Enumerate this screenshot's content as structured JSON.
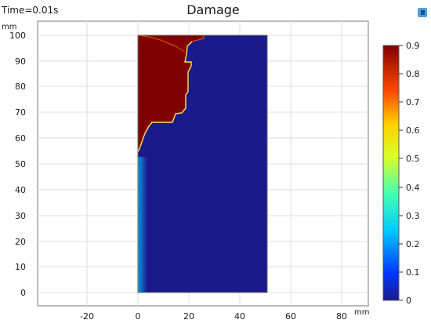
{
  "header": {
    "time_label": "Time=0.01s",
    "title": "Damage"
  },
  "axes": {
    "x_unit": "mm",
    "y_unit": "mm",
    "x_ticks": [
      "-20",
      "0",
      "20",
      "40",
      "60",
      "80"
    ],
    "y_ticks": [
      "0",
      "10",
      "20",
      "30",
      "40",
      "50",
      "60",
      "70",
      "80",
      "90",
      "100"
    ]
  },
  "colorbar": {
    "ticks": [
      "0.9",
      "0.8",
      "0.7",
      "0.6",
      "0.5",
      "0.4",
      "0.3",
      "0.2",
      "0.1",
      "0"
    ]
  },
  "icons": {
    "toolbar_icon": "zoom-extents-icon"
  },
  "colors": {
    "damage_high": "#800000",
    "damage_low": "#1a1a8c",
    "frame": "#7a7a7a",
    "grid": "#dedede"
  }
}
